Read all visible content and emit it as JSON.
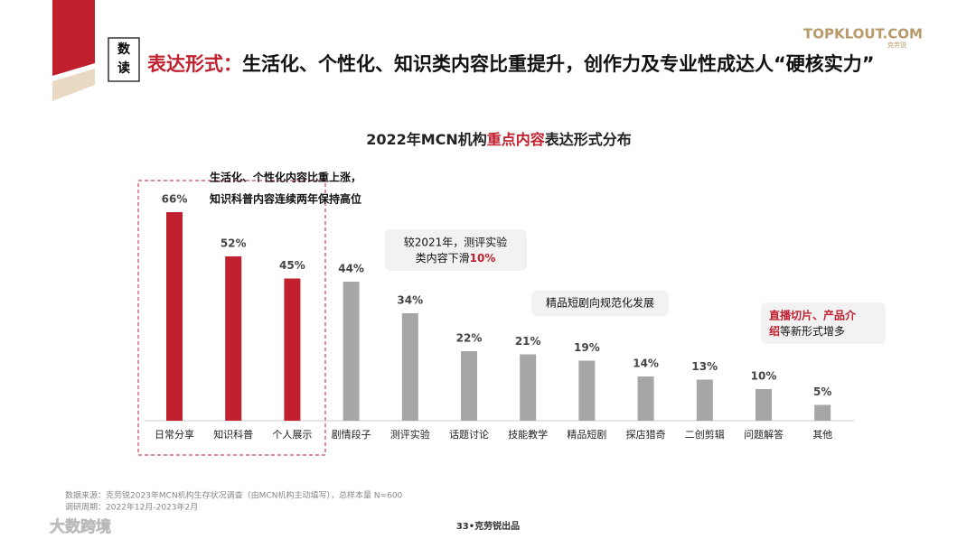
{
  "header": {
    "badge": [
      "数",
      "读"
    ],
    "headline": [
      "表达形式：",
      "生活化、个性化、知识类内容比重提升，创作力及专业性成达人“硬核实力”"
    ],
    "logo": "TOPKLOUT.COM",
    "logo_sub": "克劳锐"
  },
  "chart_data": {
    "type": "bar",
    "title": [
      "2022年MCN机构",
      "重点内容",
      "表达形式分布"
    ],
    "categories": [
      "日常分享",
      "知识科普",
      "个人展示",
      "剧情段子",
      "测评实验",
      "话题讨论",
      "技能教学",
      "精品短剧",
      "探店猎奇",
      "二创剪辑",
      "问题解答",
      "其他"
    ],
    "values": [
      66,
      52,
      45,
      44,
      34,
      22,
      21,
      19,
      14,
      13,
      10,
      5
    ],
    "value_labels": [
      "66%",
      "52%",
      "45%",
      "44%",
      "34%",
      "22%",
      "21%",
      "19%",
      "14%",
      "13%",
      "10%",
      "5%"
    ],
    "colors": [
      "#c1202f",
      "#c1202f",
      "#c1202f",
      "#a6a6a6",
      "#a6a6a6",
      "#a6a6a6",
      "#a6a6a6",
      "#a6a6a6",
      "#a6a6a6",
      "#a6a6a6",
      "#a6a6a6",
      "#a6a6a6"
    ],
    "annotations": {
      "rise": [
        "生活化、个性化内容比重上涨，",
        "知识科普内容连续两年保持高位"
      ],
      "drop": [
        "较2021年，测评实验",
        "类内容下滑",
        "10%"
      ],
      "drama": "精品短剧向规范化发展",
      "new": [
        "直播切片、产品介",
        "绍",
        "等新形式增多"
      ]
    }
  },
  "footer": {
    "source": "数据来源：克劳锐2023年MCN机构生存状况调查（由MCN机构主动填写），总样本量 N=600",
    "period": "调研周期：2022年12月-2023年2月",
    "page": "33•克劳锐出品",
    "watermark": "大数跨境"
  }
}
